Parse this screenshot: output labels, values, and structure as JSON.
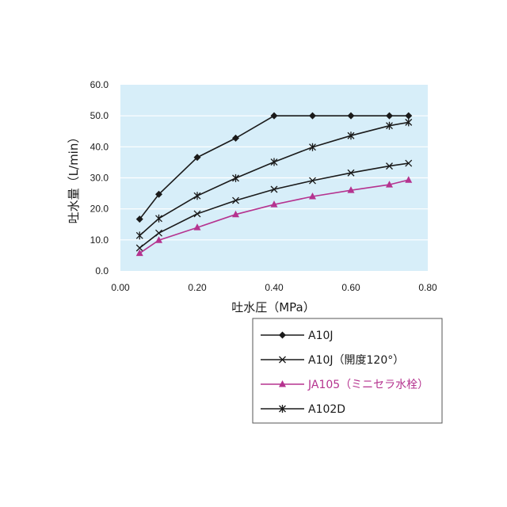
{
  "chart_data": {
    "type": "line",
    "xlabel": "吐水圧（MPa）",
    "ylabel": "吐水量（L/min）",
    "xlim": [
      0,
      0.8
    ],
    "ylim": [
      0,
      60
    ],
    "x_ticks": [
      "0.00",
      "0.20",
      "0.40",
      "0.60",
      "0.80"
    ],
    "y_ticks": [
      "0.0",
      "10.0",
      "20.0",
      "30.0",
      "40.0",
      "50.0",
      "60.0"
    ],
    "grid": "horizontal",
    "plot_background": "#d7eef9",
    "legend_position": "bottom-right",
    "series": [
      {
        "name": "A10J",
        "marker": "diamond",
        "color": "#1a1a1a",
        "x": [
          0.05,
          0.1,
          0.2,
          0.3,
          0.4,
          0.5,
          0.6,
          0.7,
          0.75
        ],
        "y": [
          16.7,
          24.7,
          36.6,
          42.8,
          50.0,
          50.0,
          50.0,
          50.0,
          50.0
        ]
      },
      {
        "name": "A10J（開度120°）",
        "marker": "x",
        "color": "#1a1a1a",
        "x": [
          0.05,
          0.1,
          0.2,
          0.3,
          0.4,
          0.5,
          0.6,
          0.7,
          0.75
        ],
        "y": [
          7.4,
          12.2,
          18.4,
          22.7,
          26.3,
          29.1,
          31.6,
          33.8,
          34.7
        ]
      },
      {
        "name": "JA105（ミニセラ水栓）",
        "marker": "triangle",
        "color": "#b5338f",
        "x": [
          0.05,
          0.1,
          0.2,
          0.3,
          0.4,
          0.5,
          0.6,
          0.7,
          0.75
        ],
        "y": [
          5.7,
          9.9,
          14.0,
          18.2,
          21.4,
          24.0,
          26.0,
          27.8,
          29.3
        ]
      },
      {
        "name": "A102D",
        "marker": "asterisk",
        "color": "#1a1a1a",
        "x": [
          0.05,
          0.1,
          0.2,
          0.3,
          0.4,
          0.5,
          0.6,
          0.7,
          0.75
        ],
        "y": [
          11.4,
          16.9,
          24.2,
          29.9,
          35.1,
          39.9,
          43.6,
          46.8,
          47.9
        ]
      }
    ]
  }
}
